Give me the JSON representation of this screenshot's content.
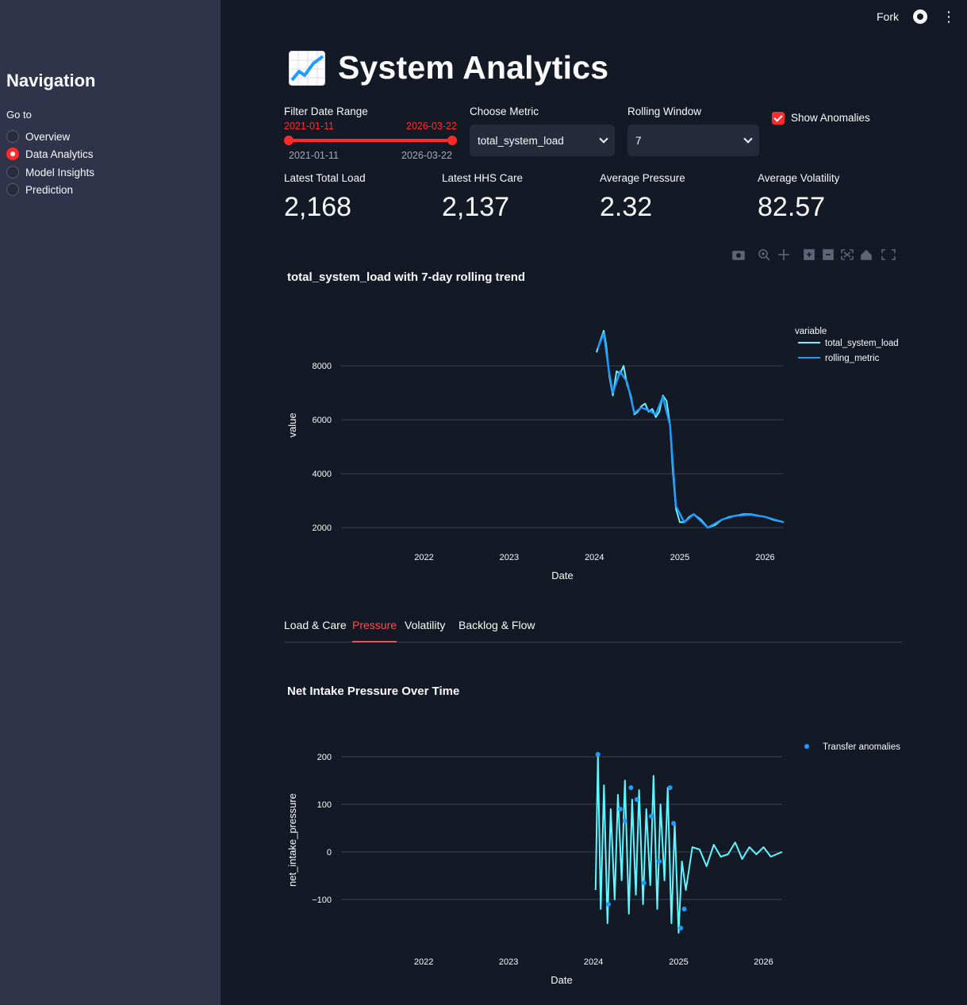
{
  "topbar": {
    "fork_label": "Fork"
  },
  "sidebar": {
    "title": "Navigation",
    "goto_label": "Go to",
    "items": [
      {
        "label": "Overview",
        "selected": false
      },
      {
        "label": "Data Analytics",
        "selected": true
      },
      {
        "label": "Model Insights",
        "selected": false
      },
      {
        "label": "Prediction",
        "selected": false
      }
    ]
  },
  "page": {
    "title": "System Analytics"
  },
  "controls": {
    "date_range": {
      "label": "Filter Date Range",
      "start": "2021-01-11",
      "end": "2026-03-22",
      "min": "2021-01-11",
      "max": "2026-03-22"
    },
    "metric": {
      "label": "Choose Metric",
      "value": "total_system_load"
    },
    "window": {
      "label": "Rolling Window",
      "value": "7"
    },
    "anomalies": {
      "label": "Show Anomalies",
      "checked": true
    }
  },
  "metrics": [
    {
      "label": "Latest Total Load",
      "value": "2,168"
    },
    {
      "label": "Latest HHS Care",
      "value": "2,137"
    },
    {
      "label": "Average Pressure",
      "value": "2.32"
    },
    {
      "label": "Average Volatility",
      "value": "82.57"
    }
  ],
  "tabs": [
    {
      "label": "Load & Care",
      "active": false
    },
    {
      "label": "Pressure",
      "active": true
    },
    {
      "label": "Volatility",
      "active": false
    },
    {
      "label": "Backlog & Flow",
      "active": false
    }
  ],
  "colors": {
    "accent": "#ff2b2b",
    "series_raw": "#6ef0ff",
    "series_rolling": "#1f9cff",
    "anomaly": "#1f9cff",
    "pressure": "#5ff6ff"
  },
  "chart_data": [
    {
      "type": "line",
      "title": "total_system_load with 7-day rolling trend",
      "xlabel": "Date",
      "ylabel": "value",
      "x_ticks": [
        "2022",
        "2023",
        "2024",
        "2025",
        "2026"
      ],
      "y_ticks": [
        2000,
        4000,
        6000,
        8000
      ],
      "xlim": [
        "2021-01-11",
        "2026-03-22"
      ],
      "ylim": [
        1800,
        9800
      ],
      "legend_title": "variable",
      "legend_placement": "top-right",
      "grid": true,
      "series": [
        {
          "name": "total_system_load",
          "x": [
            "2024-01-10",
            "2024-01-25",
            "2024-02-10",
            "2024-02-20",
            "2024-03-05",
            "2024-03-20",
            "2024-04-05",
            "2024-04-20",
            "2024-05-05",
            "2024-05-20",
            "2024-06-05",
            "2024-06-20",
            "2024-07-05",
            "2024-07-20",
            "2024-08-05",
            "2024-08-20",
            "2024-09-05",
            "2024-09-20",
            "2024-10-05",
            "2024-10-20",
            "2024-11-05",
            "2024-11-20",
            "2024-12-01",
            "2024-12-15",
            "2025-01-01",
            "2025-01-20",
            "2025-02-10",
            "2025-03-01",
            "2025-04-01",
            "2025-05-01",
            "2025-06-01",
            "2025-07-01",
            "2025-08-01",
            "2025-09-01",
            "2025-10-01",
            "2025-11-01",
            "2025-12-01",
            "2026-01-01",
            "2026-02-01",
            "2026-03-22"
          ],
          "values": [
            8500,
            8900,
            9300,
            8800,
            7600,
            6900,
            7800,
            7700,
            8000,
            7300,
            6900,
            6200,
            6300,
            6500,
            6600,
            6300,
            6400,
            6100,
            6300,
            6900,
            6700,
            5800,
            4200,
            2700,
            2200,
            2200,
            2400,
            2500,
            2300,
            2000,
            2100,
            2300,
            2400,
            2450,
            2500,
            2500,
            2450,
            2400,
            2300,
            2200
          ]
        },
        {
          "name": "rolling_metric",
          "x": [
            "2024-01-15",
            "2024-02-10",
            "2024-03-05",
            "2024-03-20",
            "2024-04-20",
            "2024-05-20",
            "2024-06-20",
            "2024-07-20",
            "2024-08-20",
            "2024-09-20",
            "2024-10-20",
            "2024-11-20",
            "2024-12-15",
            "2025-01-20",
            "2025-03-01",
            "2025-05-01",
            "2025-07-01",
            "2025-09-01",
            "2025-11-01",
            "2026-01-01",
            "2026-03-22"
          ],
          "values": [
            8650,
            9200,
            7700,
            7000,
            7800,
            7400,
            6250,
            6450,
            6350,
            6200,
            6850,
            5800,
            2800,
            2200,
            2500,
            2000,
            2300,
            2450,
            2480,
            2400,
            2200
          ]
        }
      ]
    },
    {
      "type": "line",
      "title": "Net Intake Pressure Over Time",
      "xlabel": "Date",
      "ylabel": "net_intake_pressure",
      "x_ticks": [
        "2022",
        "2023",
        "2024",
        "2025",
        "2026"
      ],
      "y_ticks": [
        -100,
        0,
        100,
        200
      ],
      "xlim": [
        "2021-01-11",
        "2026-03-22"
      ],
      "ylim": [
        -180,
        230
      ],
      "legend_placement": "top-right",
      "grid": true,
      "series": [
        {
          "name": "net_intake_pressure",
          "x": [
            "2024-01-10",
            "2024-01-20",
            "2024-02-01",
            "2024-02-15",
            "2024-03-01",
            "2024-03-15",
            "2024-04-01",
            "2024-04-15",
            "2024-05-01",
            "2024-05-15",
            "2024-06-01",
            "2024-06-15",
            "2024-07-01",
            "2024-07-15",
            "2024-08-01",
            "2024-08-15",
            "2024-09-01",
            "2024-09-15",
            "2024-10-01",
            "2024-10-15",
            "2024-11-01",
            "2024-11-15",
            "2024-12-01",
            "2024-12-15",
            "2025-01-01",
            "2025-01-15",
            "2025-02-01",
            "2025-03-01",
            "2025-04-01",
            "2025-05-01",
            "2025-06-01",
            "2025-07-01",
            "2025-08-01",
            "2025-09-01",
            "2025-10-01",
            "2025-11-01",
            "2025-12-01",
            "2026-01-01",
            "2026-02-01",
            "2026-03-22"
          ],
          "values": [
            -80,
            205,
            -120,
            140,
            -150,
            90,
            -100,
            120,
            -60,
            150,
            -130,
            110,
            -90,
            130,
            -110,
            90,
            -70,
            160,
            -120,
            100,
            -60,
            135,
            -150,
            60,
            -170,
            -20,
            -80,
            10,
            5,
            -30,
            15,
            -10,
            -5,
            20,
            -15,
            10,
            -5,
            10,
            -10,
            0
          ]
        },
        {
          "name": "Transfer anomalies",
          "x": [
            "2024-01-20",
            "2024-03-05",
            "2024-04-25",
            "2024-05-15",
            "2024-06-10",
            "2024-07-05",
            "2024-08-05",
            "2024-09-05",
            "2024-10-10",
            "2024-11-25",
            "2024-12-10",
            "2025-01-10",
            "2025-01-25"
          ],
          "values": [
            205,
            -110,
            90,
            65,
            135,
            110,
            -65,
            75,
            -20,
            135,
            60,
            -160,
            -120
          ]
        }
      ]
    }
  ]
}
